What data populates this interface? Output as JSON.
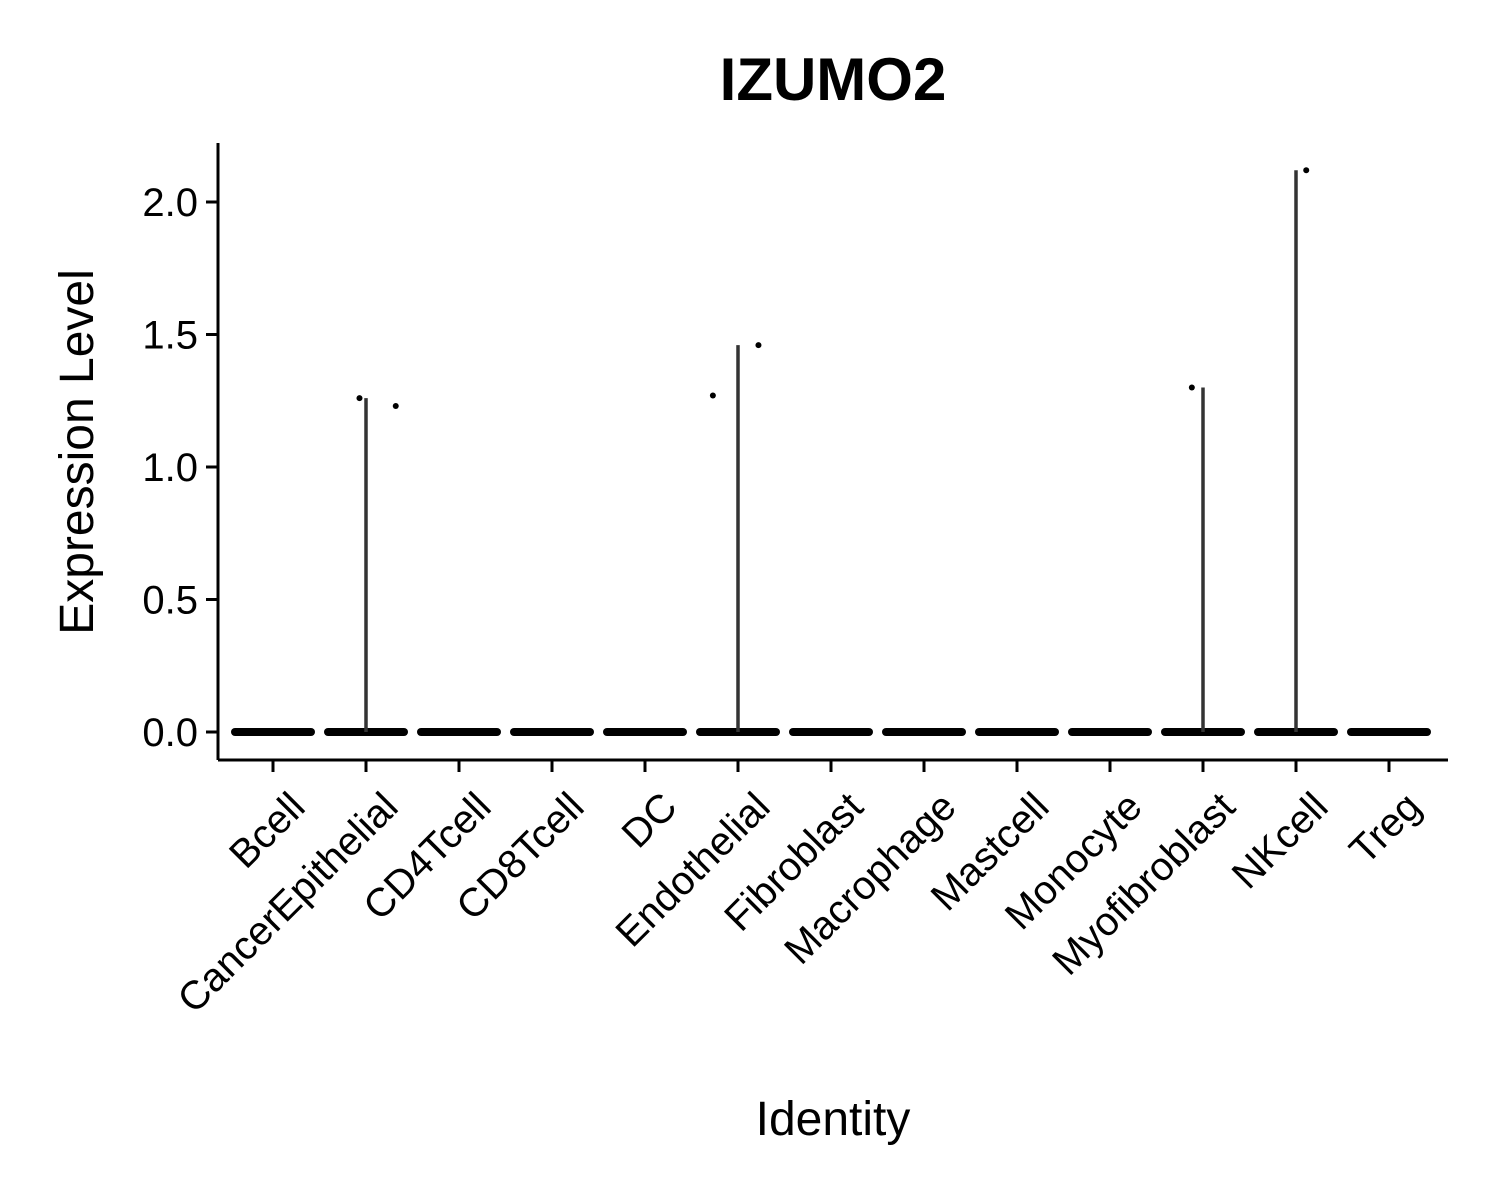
{
  "chart_data": {
    "type": "violin",
    "title": "IZUMO2",
    "xlabel": "Identity",
    "ylabel": "Expression Level",
    "ylim": [
      -0.1,
      2.22
    ],
    "yticks": [
      0.0,
      0.5,
      1.0,
      1.5,
      2.0
    ],
    "ytick_labels": [
      "0.0",
      "0.5",
      "1.0",
      "1.5",
      "2.0"
    ],
    "grid": false,
    "legend": "none",
    "categories": [
      "Bcell",
      "CancerEpithelial",
      "CD4Tcell",
      "CD8Tcell",
      "DC",
      "Endothelial",
      "Fibroblast",
      "Macrophage",
      "Mastcell",
      "Monocyte",
      "Myofibroblast",
      "NKcell",
      "Treg"
    ],
    "max_values": [
      0,
      1.26,
      0,
      0,
      0,
      1.46,
      0,
      0,
      0,
      0,
      1.3,
      2.12,
      0
    ],
    "points": [
      {
        "category": "CancerEpithelial",
        "jitter": -0.07,
        "y": 1.26
      },
      {
        "category": "CancerEpithelial",
        "jitter": 0.32,
        "y": 1.23
      },
      {
        "category": "Endothelial",
        "jitter": -0.27,
        "y": 1.27
      },
      {
        "category": "Endothelial",
        "jitter": 0.22,
        "y": 1.46
      },
      {
        "category": "Myofibroblast",
        "jitter": -0.12,
        "y": 1.3
      },
      {
        "category": "NKcell",
        "jitter": 0.11,
        "y": 2.12
      }
    ]
  }
}
